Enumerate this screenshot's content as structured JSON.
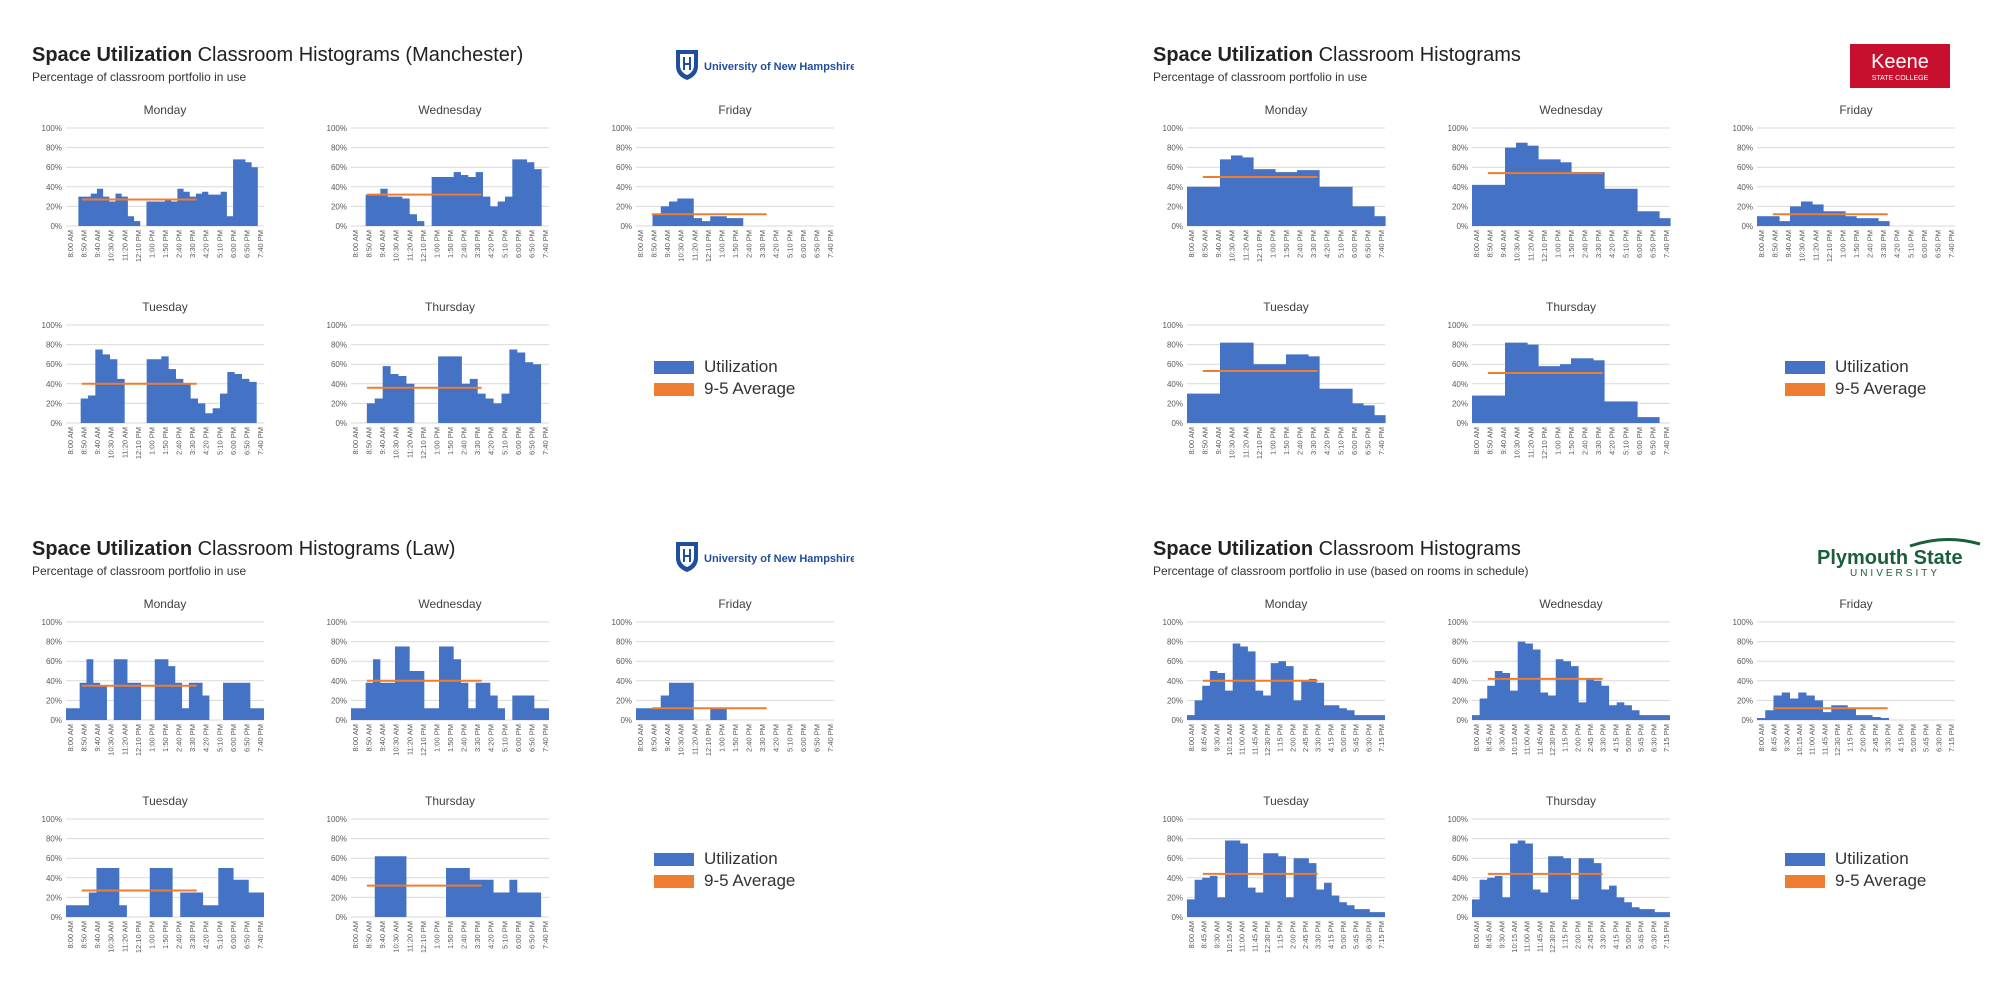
{
  "colors": {
    "utilization": "#4472c4",
    "average": "#ed7d31",
    "grid": "#d9d9d9",
    "axis_text": "#595959"
  },
  "legend": {
    "utilization": "Utilization",
    "average": "9-5 Average"
  },
  "panels": [
    {
      "id": "manchester",
      "title_bold": "Space Utilization",
      "title_rest": " Classroom Histograms (Manchester)",
      "subtitle": "Percentage of classroom portfolio in use",
      "logo": {
        "type": "unh",
        "text": "University of New Hampshire"
      }
    },
    {
      "id": "keene",
      "title_bold": "Space Utilization",
      "title_rest": " Classroom Histograms",
      "subtitle": "Percentage of classroom portfolio in use",
      "logo": {
        "type": "keene",
        "text": "Keene",
        "subtext": "STATE COLLEGE"
      }
    },
    {
      "id": "law",
      "title_bold": "Space Utilization",
      "title_rest": " Classroom Histograms (Law)",
      "subtitle": "Percentage of classroom portfolio in use",
      "logo": {
        "type": "unh",
        "text": "University of New Hampshire"
      }
    },
    {
      "id": "plymouth",
      "title_bold": "Space Utilization",
      "title_rest": " Classroom Histograms",
      "subtitle": "Percentage of classroom portfolio in use (based on rooms in schedule)",
      "logo": {
        "type": "plymouth",
        "text": "Plymouth State",
        "subtext": "UNIVERSITY"
      }
    }
  ],
  "chart_data": [
    {
      "panel": "manchester",
      "day": "Monday",
      "type": "area",
      "ylim": [
        0,
        100
      ],
      "grid": true,
      "yticks": [
        "0%",
        "20%",
        "40%",
        "60%",
        "80%",
        "100%"
      ],
      "xticks": [
        "8:00 AM",
        "8:50 AM",
        "9:40 AM",
        "10:30 AM",
        "11:20 AM",
        "12:10 PM",
        "1:00 PM",
        "1:50 PM",
        "2:40 PM",
        "3:30 PM",
        "4:20 PM",
        "5:10 PM",
        "6:00 PM",
        "6:50 PM",
        "7:40 PM"
      ],
      "values": [
        0,
        0,
        30,
        30,
        33,
        38,
        30,
        25,
        33,
        30,
        10,
        5,
        0,
        25,
        25,
        25,
        28,
        25,
        38,
        35,
        30,
        33,
        35,
        32,
        32,
        35,
        10,
        68,
        68,
        65,
        60,
        0
      ],
      "average": 27
    },
    {
      "panel": "manchester",
      "day": "Wednesday",
      "type": "area",
      "ylim": [
        0,
        100
      ],
      "grid": true,
      "yticks": [
        "0%",
        "20%",
        "40%",
        "60%",
        "80%",
        "100%"
      ],
      "xticks": [
        "8:00 AM",
        "8:50 AM",
        "9:40 AM",
        "10:30 AM",
        "11:20 AM",
        "12:10 PM",
        "1:00 PM",
        "1:50 PM",
        "2:40 PM",
        "3:30 PM",
        "4:20 PM",
        "5:10 PM",
        "6:00 PM",
        "6:50 PM",
        "7:40 PM"
      ],
      "values": [
        0,
        0,
        32,
        32,
        38,
        30,
        30,
        28,
        12,
        5,
        0,
        50,
        50,
        50,
        55,
        52,
        50,
        55,
        30,
        20,
        25,
        30,
        68,
        68,
        65,
        58,
        0
      ],
      "average": 32
    },
    {
      "panel": "manchester",
      "day": "Friday",
      "type": "area",
      "ylim": [
        0,
        100
      ],
      "grid": true,
      "yticks": [
        "0%",
        "20%",
        "40%",
        "60%",
        "80%",
        "100%"
      ],
      "xticks": [
        "8:00 AM",
        "8:50 AM",
        "9:40 AM",
        "10:30 AM",
        "11:20 AM",
        "12:10 PM",
        "1:00 PM",
        "1:50 PM",
        "2:40 PM",
        "3:30 PM",
        "4:20 PM",
        "5:10 PM",
        "6:00 PM",
        "6:50 PM",
        "7:40 PM"
      ],
      "values": [
        0,
        0,
        12,
        20,
        25,
        28,
        28,
        8,
        5,
        10,
        10,
        8,
        8,
        0,
        0,
        0,
        0,
        0,
        0,
        0,
        0,
        0,
        0,
        0
      ],
      "average": 12
    },
    {
      "panel": "manchester",
      "day": "Tuesday",
      "type": "area",
      "ylim": [
        0,
        100
      ],
      "grid": true,
      "yticks": [
        "0%",
        "20%",
        "40%",
        "60%",
        "80%",
        "100%"
      ],
      "xticks": [
        "8:00 AM",
        "8:50 AM",
        "9:40 AM",
        "10:30 AM",
        "11:20 AM",
        "12:10 PM",
        "1:00 PM",
        "1:50 PM",
        "2:40 PM",
        "3:30 PM",
        "4:20 PM",
        "5:10 PM",
        "6:00 PM",
        "6:50 PM",
        "7:40 PM"
      ],
      "values": [
        0,
        0,
        25,
        28,
        75,
        70,
        65,
        45,
        0,
        0,
        0,
        65,
        65,
        68,
        55,
        45,
        40,
        25,
        20,
        10,
        15,
        30,
        52,
        50,
        45,
        42,
        0
      ],
      "average": 40
    },
    {
      "panel": "manchester",
      "day": "Thursday",
      "type": "area",
      "ylim": [
        0,
        100
      ],
      "grid": true,
      "yticks": [
        "0%",
        "20%",
        "40%",
        "60%",
        "80%",
        "100%"
      ],
      "xticks": [
        "8:00 AM",
        "8:50 AM",
        "9:40 AM",
        "10:30 AM",
        "11:20 AM",
        "12:10 PM",
        "1:00 PM",
        "1:50 PM",
        "2:40 PM",
        "3:30 PM",
        "4:20 PM",
        "5:10 PM",
        "6:00 PM",
        "6:50 PM",
        "7:40 PM"
      ],
      "values": [
        0,
        0,
        20,
        25,
        58,
        50,
        48,
        40,
        0,
        0,
        0,
        68,
        68,
        68,
        40,
        45,
        30,
        25,
        20,
        30,
        75,
        72,
        62,
        60,
        0
      ],
      "average": 36
    },
    {
      "panel": "keene",
      "day": "Monday",
      "type": "bar",
      "ylim": [
        0,
        100
      ],
      "grid": true,
      "yticks": [
        "0%",
        "20%",
        "40%",
        "60%",
        "80%",
        "100%"
      ],
      "xticks": [
        "8:00 AM",
        "8:50 AM",
        "9:40 AM",
        "10:30 AM",
        "11:20 AM",
        "12:10 PM",
        "1:00 PM",
        "1:50 PM",
        "2:40 PM",
        "3:30 PM",
        "4:20 PM",
        "5:10 PM",
        "6:00 PM",
        "6:50 PM",
        "7:40 PM"
      ],
      "values": [
        40,
        40,
        40,
        68,
        72,
        70,
        58,
        58,
        55,
        55,
        57,
        57,
        40,
        40,
        40,
        20,
        20,
        10
      ],
      "average": 50
    },
    {
      "panel": "keene",
      "day": "Wednesday",
      "type": "bar",
      "ylim": [
        0,
        100
      ],
      "grid": true,
      "yticks": [
        "0%",
        "20%",
        "40%",
        "60%",
        "80%",
        "100%"
      ],
      "xticks": [
        "8:00 AM",
        "8:50 AM",
        "9:40 AM",
        "10:30 AM",
        "11:20 AM",
        "12:10 PM",
        "1:00 PM",
        "1:50 PM",
        "2:40 PM",
        "3:30 PM",
        "4:20 PM",
        "5:10 PM",
        "6:00 PM",
        "6:50 PM",
        "7:40 PM"
      ],
      "values": [
        42,
        42,
        42,
        80,
        85,
        82,
        68,
        68,
        65,
        55,
        55,
        55,
        38,
        38,
        38,
        15,
        15,
        8
      ],
      "average": 54
    },
    {
      "panel": "keene",
      "day": "Friday",
      "type": "bar",
      "ylim": [
        0,
        100
      ],
      "grid": true,
      "yticks": [
        "0%",
        "20%",
        "40%",
        "60%",
        "80%",
        "100%"
      ],
      "xticks": [
        "8:00 AM",
        "8:50 AM",
        "9:40 AM",
        "10:30 AM",
        "11:20 AM",
        "12:10 PM",
        "1:00 PM",
        "1:50 PM",
        "2:40 PM",
        "3:30 PM",
        "4:20 PM",
        "5:10 PM",
        "6:00 PM",
        "6:50 PM",
        "7:40 PM"
      ],
      "values": [
        10,
        10,
        5,
        20,
        25,
        22,
        15,
        15,
        10,
        8,
        8,
        5,
        0,
        0,
        0,
        0,
        0,
        0
      ],
      "average": 12
    },
    {
      "panel": "keene",
      "day": "Tuesday",
      "type": "bar",
      "ylim": [
        0,
        100
      ],
      "grid": true,
      "yticks": [
        "0%",
        "20%",
        "40%",
        "60%",
        "80%",
        "100%"
      ],
      "xticks": [
        "8:00 AM",
        "8:50 AM",
        "9:40 AM",
        "10:30 AM",
        "11:20 AM",
        "12:10 PM",
        "1:00 PM",
        "1:50 PM",
        "2:40 PM",
        "3:30 PM",
        "4:20 PM",
        "5:10 PM",
        "6:00 PM",
        "6:50 PM",
        "7:40 PM"
      ],
      "values": [
        30,
        30,
        30,
        82,
        82,
        82,
        60,
        60,
        60,
        70,
        70,
        68,
        35,
        35,
        35,
        20,
        18,
        8
      ],
      "average": 53
    },
    {
      "panel": "keene",
      "day": "Thursday",
      "type": "bar",
      "ylim": [
        0,
        100
      ],
      "grid": true,
      "yticks": [
        "0%",
        "20%",
        "40%",
        "60%",
        "80%",
        "100%"
      ],
      "xticks": [
        "8:00 AM",
        "8:50 AM",
        "9:40 AM",
        "10:30 AM",
        "11:20 AM",
        "12:10 PM",
        "1:00 PM",
        "1:50 PM",
        "2:40 PM",
        "3:30 PM",
        "4:20 PM",
        "5:10 PM",
        "6:00 PM",
        "6:50 PM",
        "7:40 PM"
      ],
      "values": [
        28,
        28,
        28,
        82,
        82,
        80,
        58,
        58,
        60,
        66,
        66,
        64,
        22,
        22,
        22,
        6,
        6,
        0
      ],
      "average": 51
    },
    {
      "panel": "law",
      "day": "Monday",
      "type": "area",
      "ylim": [
        0,
        100
      ],
      "grid": true,
      "yticks": [
        "0%",
        "20%",
        "40%",
        "60%",
        "80%",
        "100%"
      ],
      "xticks": [
        "8:00 AM",
        "8:50 AM",
        "9:40 AM",
        "10:30 AM",
        "11:20 AM",
        "12:10 PM",
        "1:00 PM",
        "1:50 PM",
        "2:40 PM",
        "3:30 PM",
        "4:20 PM",
        "5:10 PM",
        "6:00 PM",
        "6:50 PM",
        "7:40 PM"
      ],
      "values": [
        12,
        12,
        38,
        62,
        38,
        35,
        0,
        62,
        62,
        38,
        38,
        0,
        0,
        62,
        62,
        55,
        38,
        12,
        38,
        38,
        25,
        0,
        0,
        38,
        38,
        38,
        38,
        12,
        12
      ],
      "average": 35
    },
    {
      "panel": "law",
      "day": "Wednesday",
      "type": "area",
      "ylim": [
        0,
        100
      ],
      "grid": true,
      "yticks": [
        "0%",
        "20%",
        "40%",
        "60%",
        "80%",
        "100%"
      ],
      "xticks": [
        "8:00 AM",
        "8:50 AM",
        "9:40 AM",
        "10:30 AM",
        "11:20 AM",
        "12:10 PM",
        "1:00 PM",
        "1:50 PM",
        "2:40 PM",
        "3:30 PM",
        "4:20 PM",
        "5:10 PM",
        "6:00 PM",
        "6:50 PM",
        "7:40 PM"
      ],
      "values": [
        12,
        12,
        38,
        62,
        38,
        38,
        75,
        75,
        50,
        50,
        12,
        12,
        75,
        75,
        62,
        38,
        12,
        38,
        38,
        25,
        12,
        0,
        25,
        25,
        25,
        12,
        12
      ],
      "average": 40
    },
    {
      "panel": "law",
      "day": "Friday",
      "type": "area",
      "ylim": [
        0,
        100
      ],
      "grid": true,
      "yticks": [
        "0%",
        "20%",
        "40%",
        "60%",
        "80%",
        "100%"
      ],
      "xticks": [
        "8:00 AM",
        "8:50 AM",
        "9:40 AM",
        "10:30 AM",
        "11:20 AM",
        "12:10 PM",
        "1:00 PM",
        "1:50 PM",
        "2:40 PM",
        "3:30 PM",
        "4:20 PM",
        "5:10 PM",
        "6:00 PM",
        "6:50 PM",
        "7:40 PM"
      ],
      "values": [
        12,
        12,
        12,
        25,
        38,
        38,
        38,
        0,
        0,
        12,
        12,
        0,
        0,
        0,
        0,
        0,
        0,
        0,
        0,
        0,
        0,
        0,
        0,
        0
      ],
      "average": 12
    },
    {
      "panel": "law",
      "day": "Tuesday",
      "type": "area",
      "ylim": [
        0,
        100
      ],
      "grid": true,
      "yticks": [
        "0%",
        "20%",
        "40%",
        "60%",
        "80%",
        "100%"
      ],
      "xticks": [
        "8:00 AM",
        "8:50 AM",
        "9:40 AM",
        "10:30 AM",
        "11:20 AM",
        "12:10 PM",
        "1:00 PM",
        "1:50 PM",
        "2:40 PM",
        "3:30 PM",
        "4:20 PM",
        "5:10 PM",
        "6:00 PM",
        "6:50 PM",
        "7:40 PM"
      ],
      "values": [
        12,
        12,
        12,
        25,
        50,
        50,
        50,
        12,
        0,
        0,
        0,
        50,
        50,
        50,
        0,
        25,
        25,
        25,
        12,
        12,
        50,
        50,
        38,
        38,
        25,
        25
      ],
      "average": 27
    },
    {
      "panel": "law",
      "day": "Thursday",
      "type": "area",
      "ylim": [
        0,
        100
      ],
      "grid": true,
      "yticks": [
        "0%",
        "20%",
        "40%",
        "60%",
        "80%",
        "100%"
      ],
      "xticks": [
        "8:00 AM",
        "8:50 AM",
        "9:40 AM",
        "10:30 AM",
        "11:20 AM",
        "12:10 PM",
        "1:00 PM",
        "1:50 PM",
        "2:40 PM",
        "3:30 PM",
        "4:20 PM",
        "5:10 PM",
        "6:00 PM",
        "6:50 PM",
        "7:40 PM"
      ],
      "values": [
        0,
        0,
        0,
        62,
        62,
        62,
        62,
        0,
        0,
        0,
        0,
        0,
        50,
        50,
        50,
        38,
        38,
        38,
        25,
        25,
        38,
        25,
        25,
        25,
        0
      ],
      "average": 32
    },
    {
      "panel": "plymouth",
      "day": "Monday",
      "type": "area",
      "ylim": [
        0,
        100
      ],
      "grid": true,
      "yticks": [
        "0%",
        "20%",
        "40%",
        "60%",
        "80%",
        "100%"
      ],
      "xticks": [
        "8:00 AM",
        "8:45 AM",
        "9:30 AM",
        "10:15 AM",
        "11:00 AM",
        "11:45 AM",
        "12:30 PM",
        "1:15 PM",
        "2:00 PM",
        "2:45 PM",
        "3:30 PM",
        "4:15 PM",
        "5:00 PM",
        "5:45 PM",
        "6:30 PM",
        "7:15 PM"
      ],
      "values": [
        5,
        20,
        35,
        50,
        48,
        30,
        78,
        75,
        70,
        30,
        25,
        58,
        60,
        55,
        20,
        40,
        42,
        38,
        15,
        15,
        12,
        10,
        5,
        5,
        5,
        5
      ],
      "average": 40
    },
    {
      "panel": "plymouth",
      "day": "Wednesday",
      "type": "area",
      "ylim": [
        0,
        100
      ],
      "grid": true,
      "yticks": [
        "0%",
        "20%",
        "40%",
        "60%",
        "80%",
        "100%"
      ],
      "xticks": [
        "8:00 AM",
        "8:45 AM",
        "9:30 AM",
        "10:15 AM",
        "11:00 AM",
        "11:45 AM",
        "12:30 PM",
        "1:15 PM",
        "2:00 PM",
        "2:45 PM",
        "3:30 PM",
        "4:15 PM",
        "5:00 PM",
        "5:45 PM",
        "6:30 PM",
        "7:15 PM"
      ],
      "values": [
        5,
        22,
        35,
        50,
        48,
        30,
        80,
        78,
        72,
        28,
        25,
        62,
        60,
        55,
        18,
        42,
        40,
        35,
        15,
        18,
        15,
        10,
        5,
        5,
        5,
        5
      ],
      "average": 42
    },
    {
      "panel": "plymouth",
      "day": "Friday",
      "type": "area",
      "ylim": [
        0,
        100
      ],
      "grid": true,
      "yticks": [
        "0%",
        "20%",
        "40%",
        "60%",
        "80%",
        "100%"
      ],
      "xticks": [
        "8:00 AM",
        "8:45 AM",
        "9:30 AM",
        "10:15 AM",
        "11:00 AM",
        "11:45 AM",
        "12:30 PM",
        "1:15 PM",
        "2:00 PM",
        "2:45 PM",
        "3:30 PM",
        "4:15 PM",
        "5:00 PM",
        "5:45 PM",
        "6:30 PM",
        "7:15 PM"
      ],
      "values": [
        2,
        10,
        25,
        28,
        22,
        28,
        25,
        20,
        8,
        15,
        15,
        12,
        5,
        5,
        3,
        2,
        0,
        0,
        0,
        0,
        0,
        0,
        0,
        0
      ],
      "average": 12
    },
    {
      "panel": "plymouth",
      "day": "Tuesday",
      "type": "area",
      "ylim": [
        0,
        100
      ],
      "grid": true,
      "yticks": [
        "0%",
        "20%",
        "40%",
        "60%",
        "80%",
        "100%"
      ],
      "xticks": [
        "8:00 AM",
        "8:45 AM",
        "9:30 AM",
        "10:15 AM",
        "11:00 AM",
        "11:45 AM",
        "12:30 PM",
        "1:15 PM",
        "2:00 PM",
        "2:45 PM",
        "3:30 PM",
        "4:15 PM",
        "5:00 PM",
        "5:45 PM",
        "6:30 PM",
        "7:15 PM"
      ],
      "values": [
        18,
        38,
        40,
        42,
        20,
        78,
        78,
        75,
        30,
        25,
        65,
        65,
        62,
        20,
        60,
        60,
        55,
        28,
        35,
        22,
        15,
        12,
        8,
        8,
        5,
        5
      ],
      "average": 44
    },
    {
      "panel": "plymouth",
      "day": "Thursday",
      "type": "area",
      "ylim": [
        0,
        100
      ],
      "grid": true,
      "yticks": [
        "0%",
        "20%",
        "40%",
        "60%",
        "80%",
        "100%"
      ],
      "xticks": [
        "8:00 AM",
        "8:45 AM",
        "9:30 AM",
        "10:15 AM",
        "11:00 AM",
        "11:45 AM",
        "12:30 PM",
        "1:15 PM",
        "2:00 PM",
        "2:45 PM",
        "3:30 PM",
        "4:15 PM",
        "5:00 PM",
        "5:45 PM",
        "6:30 PM",
        "7:15 PM"
      ],
      "values": [
        18,
        38,
        40,
        42,
        20,
        75,
        78,
        75,
        28,
        25,
        62,
        62,
        60,
        18,
        60,
        60,
        55,
        28,
        32,
        20,
        15,
        10,
        8,
        8,
        5,
        5
      ],
      "average": 44
    }
  ]
}
